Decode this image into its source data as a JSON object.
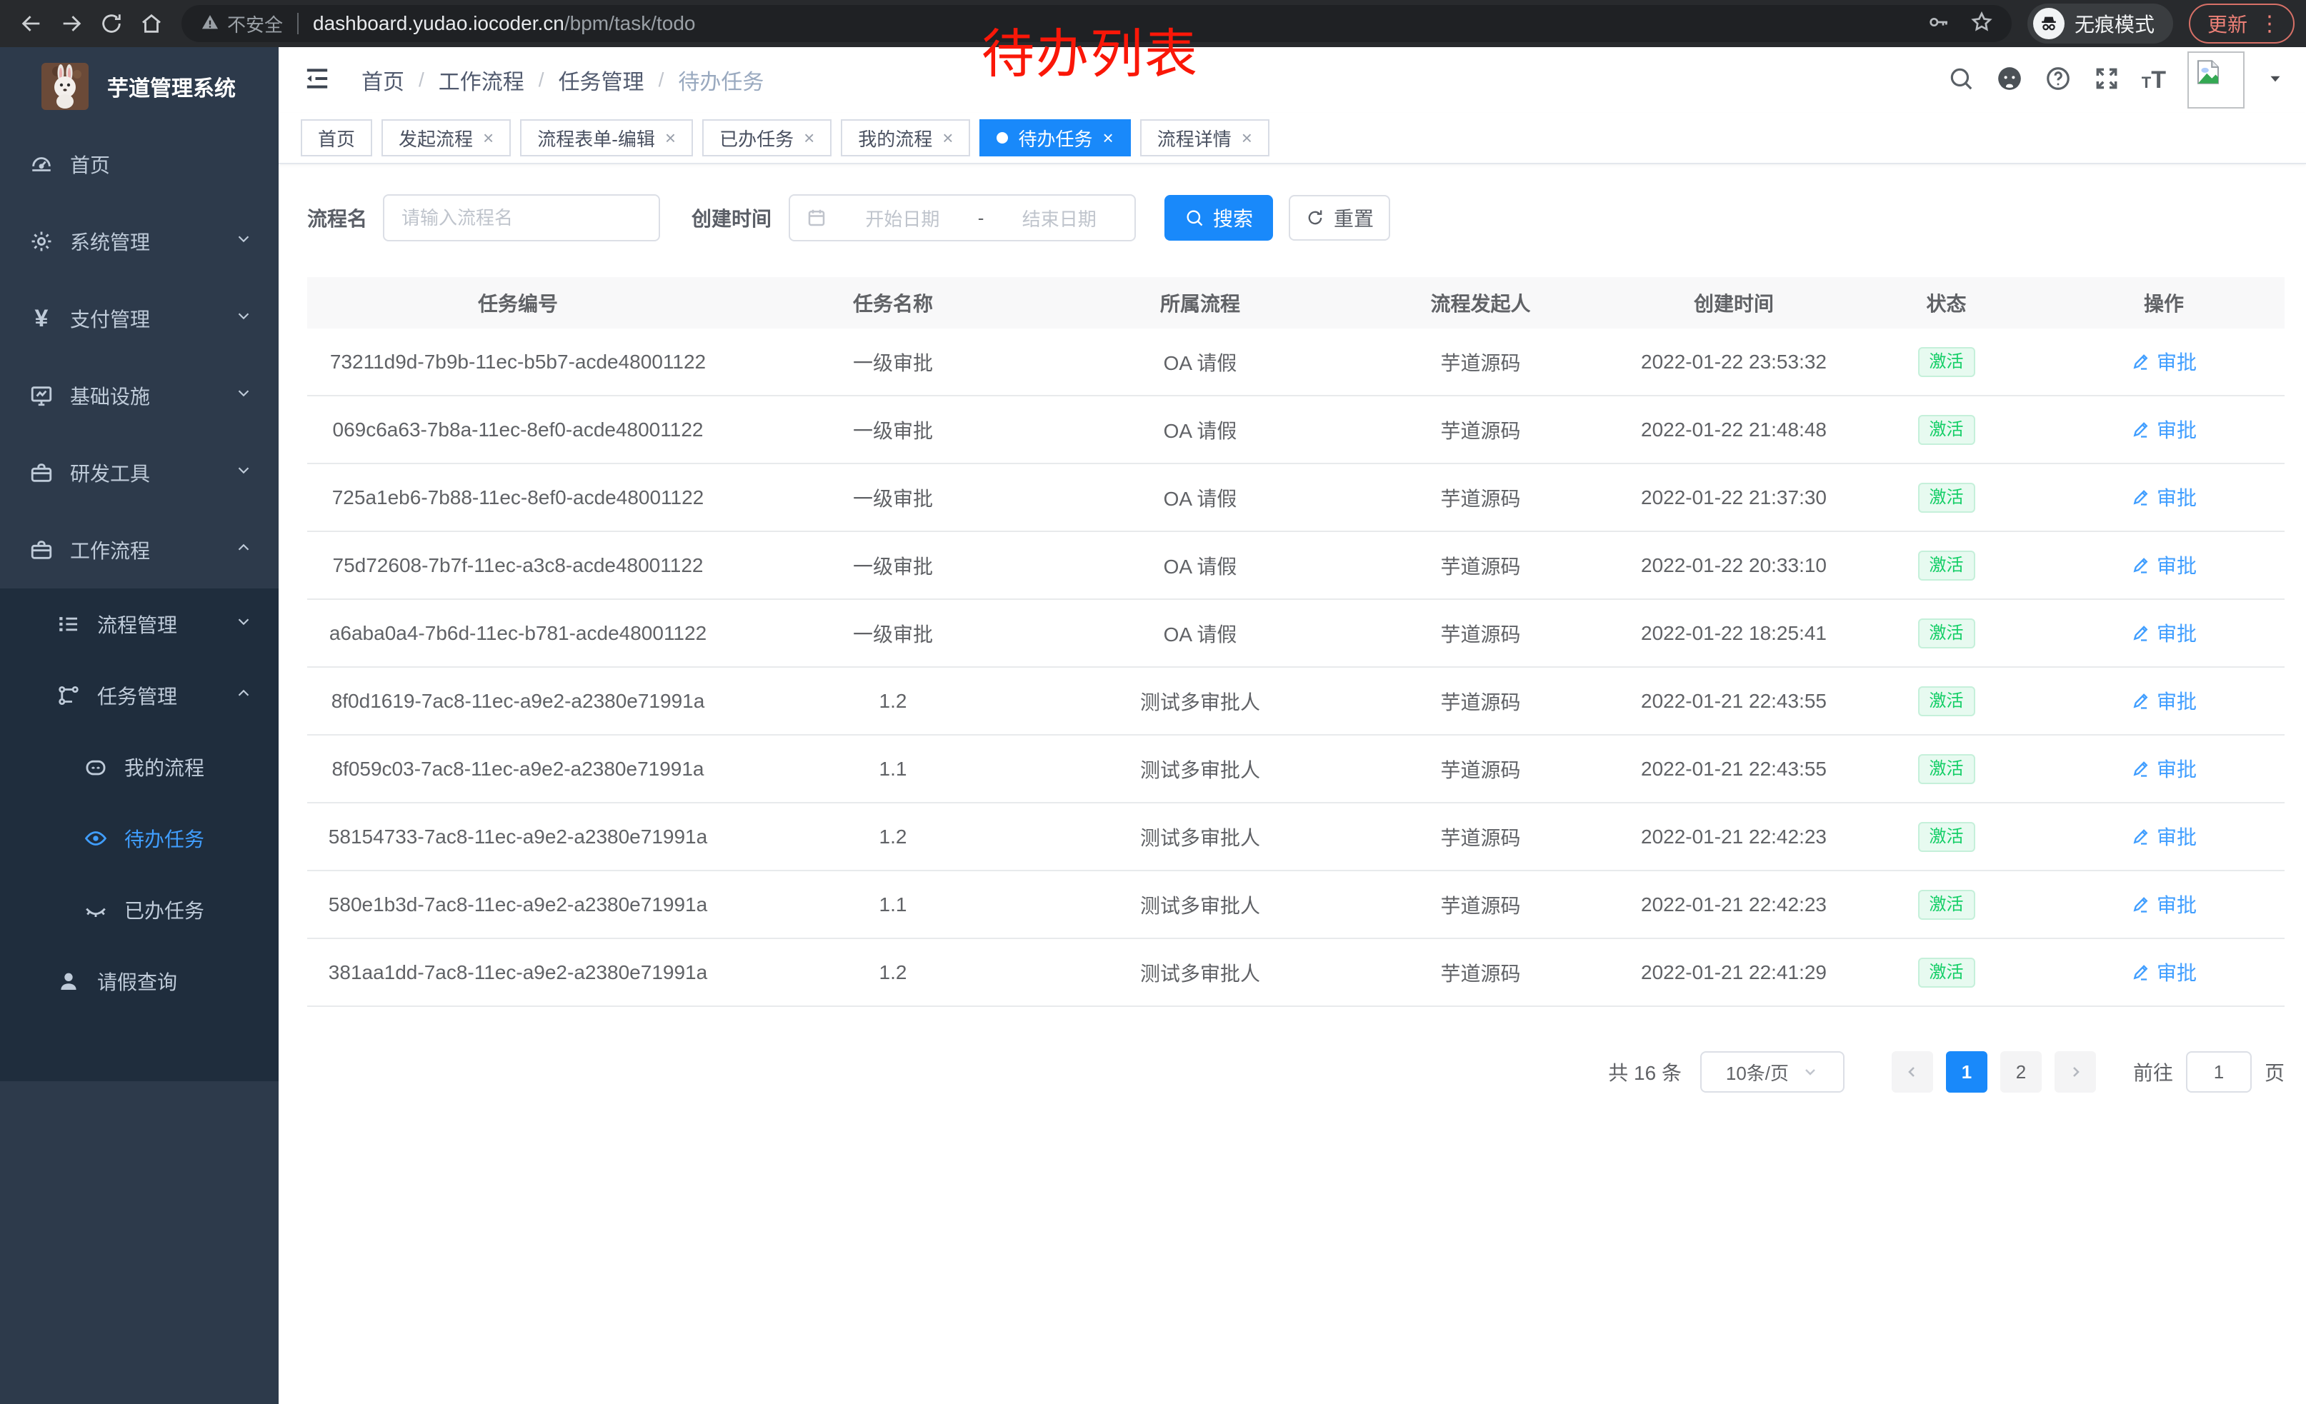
{
  "browser": {
    "security_label": "不安全",
    "url_host": "dashboard.yudao.iocoder.cn",
    "url_path": "/bpm/task/todo",
    "incognito_label": "无痕模式",
    "update_label": "更新",
    "menu_dots": "⋮"
  },
  "annotation": {
    "text": "待办列表",
    "color": "#fa1708"
  },
  "colors": {
    "accent_blue": "#1989fa",
    "link_blue": "#409eff",
    "status_green": "#13ce66",
    "sidebar_bg": "#2d3a4b",
    "sidebar_submenu_bg": "#1f2d3d"
  },
  "sidebar": {
    "logo_title": "芋道管理系统",
    "items": [
      {
        "label": "首页",
        "icon": "dashboard",
        "level": 1,
        "chevron": null,
        "active": false,
        "group": "top"
      },
      {
        "label": "系统管理",
        "icon": "gear",
        "level": 1,
        "chevron": "down",
        "active": false,
        "group": "top"
      },
      {
        "label": "支付管理",
        "icon": "yen",
        "level": 1,
        "chevron": "down",
        "active": false,
        "group": "top"
      },
      {
        "label": "基础设施",
        "icon": "monitor",
        "level": 1,
        "chevron": "down",
        "active": false,
        "group": "top"
      },
      {
        "label": "研发工具",
        "icon": "toolbox",
        "level": 1,
        "chevron": "down",
        "active": false,
        "group": "top"
      },
      {
        "label": "工作流程",
        "icon": "toolbox",
        "level": 1,
        "chevron": "up",
        "active": false,
        "group": "top"
      },
      {
        "label": "流程管理",
        "icon": "list-tree",
        "level": 2,
        "chevron": "down",
        "active": false,
        "group": "sub"
      },
      {
        "label": "任务管理",
        "icon": "node-tree",
        "level": 2,
        "chevron": "up",
        "active": false,
        "group": "sub"
      },
      {
        "label": "我的流程",
        "icon": "robot-face",
        "level": 3,
        "chevron": null,
        "active": false,
        "group": "sub"
      },
      {
        "label": "待办任务",
        "icon": "eye-open",
        "level": 3,
        "chevron": null,
        "active": true,
        "group": "sub"
      },
      {
        "label": "已办任务",
        "icon": "eye-closed",
        "level": 3,
        "chevron": null,
        "active": false,
        "group": "sub"
      },
      {
        "label": "请假查询",
        "icon": "user",
        "level": 2,
        "chevron": null,
        "active": false,
        "group": "sub"
      }
    ]
  },
  "breadcrumb": [
    "首页",
    "工作流程",
    "任务管理",
    "待办任务"
  ],
  "tabs": [
    {
      "label": "首页",
      "closable": false,
      "active": false
    },
    {
      "label": "发起流程",
      "closable": true,
      "active": false
    },
    {
      "label": "流程表单-编辑",
      "closable": true,
      "active": false
    },
    {
      "label": "已办任务",
      "closable": true,
      "active": false
    },
    {
      "label": "我的流程",
      "closable": true,
      "active": false
    },
    {
      "label": "待办任务",
      "closable": true,
      "active": true
    },
    {
      "label": "流程详情",
      "closable": true,
      "active": false
    }
  ],
  "filters": {
    "name_label": "流程名",
    "name_placeholder": "请输入流程名",
    "time_label": "创建时间",
    "start_placeholder": "开始日期",
    "separator": "-",
    "end_placeholder": "结束日期",
    "search_label": "搜索",
    "reset_label": "重置"
  },
  "table": {
    "columns": [
      "任务编号",
      "任务名称",
      "所属流程",
      "流程发起人",
      "创建时间",
      "状态",
      "操作"
    ],
    "rows": [
      {
        "id": "73211d9d-7b9b-11ec-b5b7-acde48001122",
        "name": "一级审批",
        "process": "OA 请假",
        "starter": "芋道源码",
        "created": "2022-01-22 23:53:32",
        "status": "激活",
        "action": "审批"
      },
      {
        "id": "069c6a63-7b8a-11ec-8ef0-acde48001122",
        "name": "一级审批",
        "process": "OA 请假",
        "starter": "芋道源码",
        "created": "2022-01-22 21:48:48",
        "status": "激活",
        "action": "审批"
      },
      {
        "id": "725a1eb6-7b88-11ec-8ef0-acde48001122",
        "name": "一级审批",
        "process": "OA 请假",
        "starter": "芋道源码",
        "created": "2022-01-22 21:37:30",
        "status": "激活",
        "action": "审批"
      },
      {
        "id": "75d72608-7b7f-11ec-a3c8-acde48001122",
        "name": "一级审批",
        "process": "OA 请假",
        "starter": "芋道源码",
        "created": "2022-01-22 20:33:10",
        "status": "激活",
        "action": "审批"
      },
      {
        "id": "a6aba0a4-7b6d-11ec-b781-acde48001122",
        "name": "一级审批",
        "process": "OA 请假",
        "starter": "芋道源码",
        "created": "2022-01-22 18:25:41",
        "status": "激活",
        "action": "审批"
      },
      {
        "id": "8f0d1619-7ac8-11ec-a9e2-a2380e71991a",
        "name": "1.2",
        "process": "测试多审批人",
        "starter": "芋道源码",
        "created": "2022-01-21 22:43:55",
        "status": "激活",
        "action": "审批"
      },
      {
        "id": "8f059c03-7ac8-11ec-a9e2-a2380e71991a",
        "name": "1.1",
        "process": "测试多审批人",
        "starter": "芋道源码",
        "created": "2022-01-21 22:43:55",
        "status": "激活",
        "action": "审批"
      },
      {
        "id": "58154733-7ac8-11ec-a9e2-a2380e71991a",
        "name": "1.2",
        "process": "测试多审批人",
        "starter": "芋道源码",
        "created": "2022-01-21 22:42:23",
        "status": "激活",
        "action": "审批"
      },
      {
        "id": "580e1b3d-7ac8-11ec-a9e2-a2380e71991a",
        "name": "1.1",
        "process": "测试多审批人",
        "starter": "芋道源码",
        "created": "2022-01-21 22:42:23",
        "status": "激活",
        "action": "审批"
      },
      {
        "id": "381aa1dd-7ac8-11ec-a9e2-a2380e71991a",
        "name": "1.2",
        "process": "测试多审批人",
        "starter": "芋道源码",
        "created": "2022-01-21 22:41:29",
        "status": "激活",
        "action": "审批"
      }
    ]
  },
  "pagination": {
    "total_label": "共 16 条",
    "page_size": "10条/页",
    "pages": [
      "1",
      "2"
    ],
    "active_page": "1",
    "goto_label": "前往",
    "goto_value": "1",
    "goto_suffix": "页"
  }
}
